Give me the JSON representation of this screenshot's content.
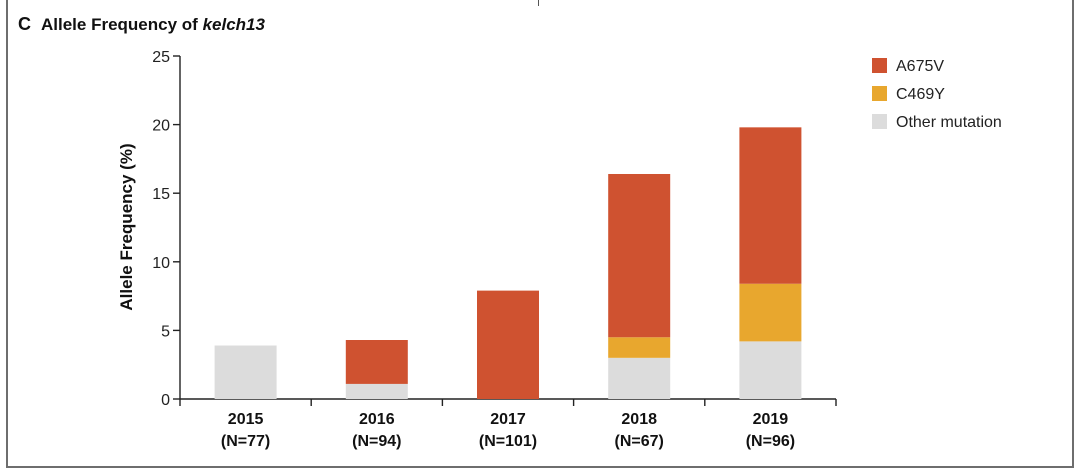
{
  "panel": {
    "letter": "C",
    "title_prefix": "Allele Frequency of",
    "title_gene": "kelch13"
  },
  "chart_data": {
    "type": "bar",
    "stacked": true,
    "categories": [
      "2015",
      "2016",
      "2017",
      "2018",
      "2019"
    ],
    "category_sublabels": [
      "(N=77)",
      "(N=94)",
      "(N=101)",
      "(N=67)",
      "(N=96)"
    ],
    "series": [
      {
        "name": "Other mutation",
        "color": "#dcdcdc",
        "values": [
          3.9,
          1.1,
          0.0,
          3.0,
          4.2
        ]
      },
      {
        "name": "C469Y",
        "color": "#e8a72e",
        "values": [
          0.0,
          0.0,
          0.0,
          1.5,
          4.2
        ]
      },
      {
        "name": "A675V",
        "color": "#cf5230",
        "values": [
          0.0,
          3.2,
          7.9,
          11.9,
          11.4
        ]
      }
    ],
    "legend_order": [
      "A675V",
      "C469Y",
      "Other mutation"
    ],
    "legend_position": "top-right",
    "ylabel": "Allele Frequency (%)",
    "xlabel": "",
    "ylim": [
      0,
      25
    ],
    "yticks": [
      0,
      5,
      10,
      15,
      20,
      25
    ],
    "grid": false
  }
}
